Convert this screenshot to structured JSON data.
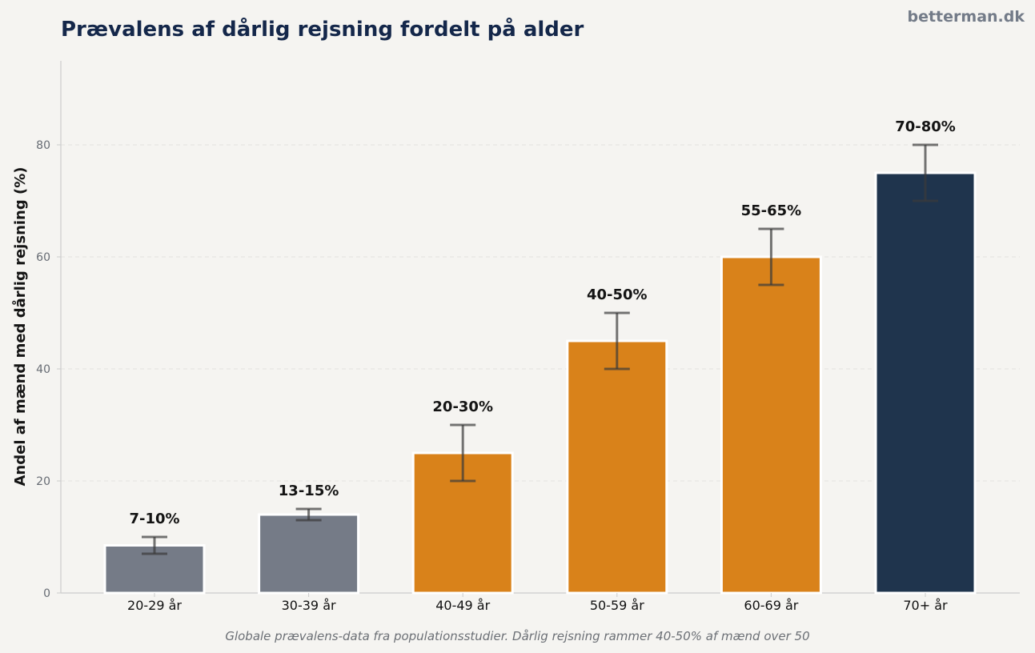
{
  "header": {
    "brand": "betterman.dk"
  },
  "footer": {
    "caption": "Globale prævalens-data fra populationsstudier. Dårlig rejsning rammer 40-50% af mænd over 50"
  },
  "chart_data": {
    "type": "bar",
    "title": "Prævalens af dårlig rejsning fordelt på alder",
    "xlabel": "",
    "ylabel": "Andel af mænd med dårlig rejsning (%)",
    "ylim": [
      0,
      95
    ],
    "yticks": [
      0,
      20,
      40,
      60,
      80
    ],
    "grid": true,
    "categories": [
      "20-29 år",
      "30-39 år",
      "40-49 år",
      "50-59 år",
      "60-69 år",
      "70+ år"
    ],
    "values": [
      8.5,
      14,
      25,
      45,
      60,
      75
    ],
    "error_low": [
      7,
      13,
      20,
      40,
      55,
      70
    ],
    "error_high": [
      10,
      15,
      30,
      50,
      65,
      80
    ],
    "data_labels": [
      "7-10%",
      "13-15%",
      "20-30%",
      "40-50%",
      "55-65%",
      "70-80%"
    ],
    "colors": [
      "#757b87",
      "#757b87",
      "#d9821a",
      "#d9821a",
      "#d9821a",
      "#1f344d"
    ],
    "colors_meta": {
      "background": "#f5f4f1",
      "grid": "#e3e2de",
      "axis": "#cccccc",
      "errorbar": "#3a3a3a"
    }
  }
}
